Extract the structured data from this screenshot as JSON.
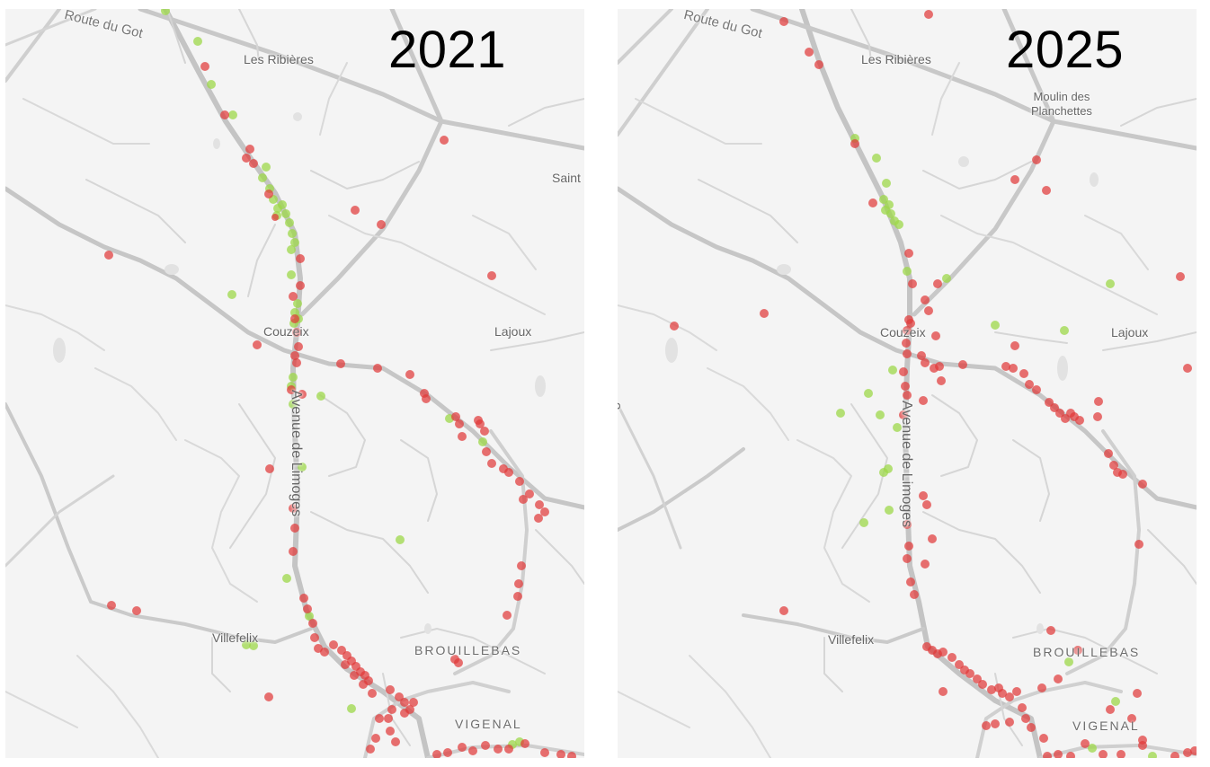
{
  "panels": [
    {
      "year": "2021",
      "labels": {
        "route_du_got": "Route du Got",
        "les_ribieres": "Les Ribières",
        "saint": "Saint",
        "couzeix": "Couzeix",
        "lajoux": "Lajoux",
        "avenue_de_limoges": "Avenue de Limoges",
        "villefelix": "Villefelix",
        "brouillebas": "BROUILLEBAS",
        "vigenal": "VIGENAL"
      }
    },
    {
      "year": "2025",
      "labels": {
        "route_du_got": "Route du Got",
        "les_ribieres": "Les Ribières",
        "moulin_line1": "Moulin des",
        "moulin_line2": "Planchettes",
        "couzeix": "Couzeix",
        "lajoux": "Lajoux",
        "avenue_de_limoges": "Avenue de Limoges",
        "villefelix": "Villefelix",
        "brouillebas": "BROUILLEBAS",
        "vigenal": "VIGENAL",
        "edge_text": "e"
      }
    }
  ],
  "colors": {
    "map_background": "#f4f4f4",
    "major_road": "#c8c8c8",
    "minor_road": "#d2d2d2",
    "red_marker": "#e03a3a",
    "green_marker": "#9ed84a"
  }
}
